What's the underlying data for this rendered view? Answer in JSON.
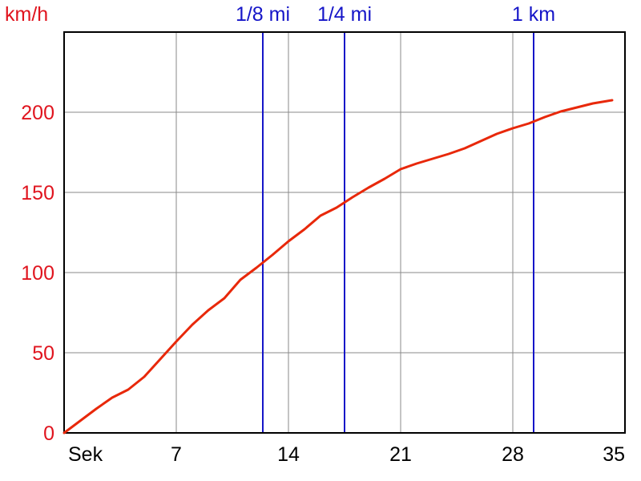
{
  "chart_data": {
    "type": "line",
    "title": "",
    "ylabel": "km/h",
    "x_unit_label": "Sek",
    "xlim": [
      0,
      35
    ],
    "ylim": [
      0,
      250
    ],
    "x_ticks": [
      {
        "value": 0,
        "label": "Sek"
      },
      {
        "value": 7,
        "label": "7"
      },
      {
        "value": 14,
        "label": "14"
      },
      {
        "value": 21,
        "label": "21"
      },
      {
        "value": 28,
        "label": "28"
      },
      {
        "value": 35,
        "label": "35"
      }
    ],
    "y_ticks": [
      0,
      50,
      100,
      150,
      200
    ],
    "y_gridlines": [
      50,
      100,
      150,
      200
    ],
    "grid": true,
    "markers": [
      {
        "label": "1/8 mi",
        "x": 12.4
      },
      {
        "label": "1/4 mi",
        "x": 17.5
      },
      {
        "label": "1 km",
        "x": 29.3
      }
    ],
    "series": [
      {
        "x": [
          0,
          1,
          2,
          3,
          4,
          5,
          6,
          7,
          8,
          9,
          10,
          11,
          12,
          13,
          14,
          15,
          16,
          17,
          18,
          19,
          20,
          21,
          22,
          23,
          24,
          25,
          26,
          27,
          28,
          29,
          30,
          31,
          32,
          33,
          34.2
        ],
        "values": [
          0,
          7.5,
          15,
          22,
          27,
          35,
          46,
          57,
          67.5,
          76.5,
          84,
          95.5,
          103,
          111,
          119.5,
          127,
          135.5,
          140.5,
          147,
          153,
          158.5,
          164.5,
          168,
          171,
          174,
          177.5,
          182,
          186.5,
          190,
          193,
          197,
          200.5,
          203,
          205.5,
          207.5
        ]
      }
    ]
  },
  "colors": {
    "series": "#e8280a",
    "markers": "#1515c8",
    "grid": "#8a8a8a",
    "axis": "#000000",
    "y_text": "#e0141e"
  }
}
